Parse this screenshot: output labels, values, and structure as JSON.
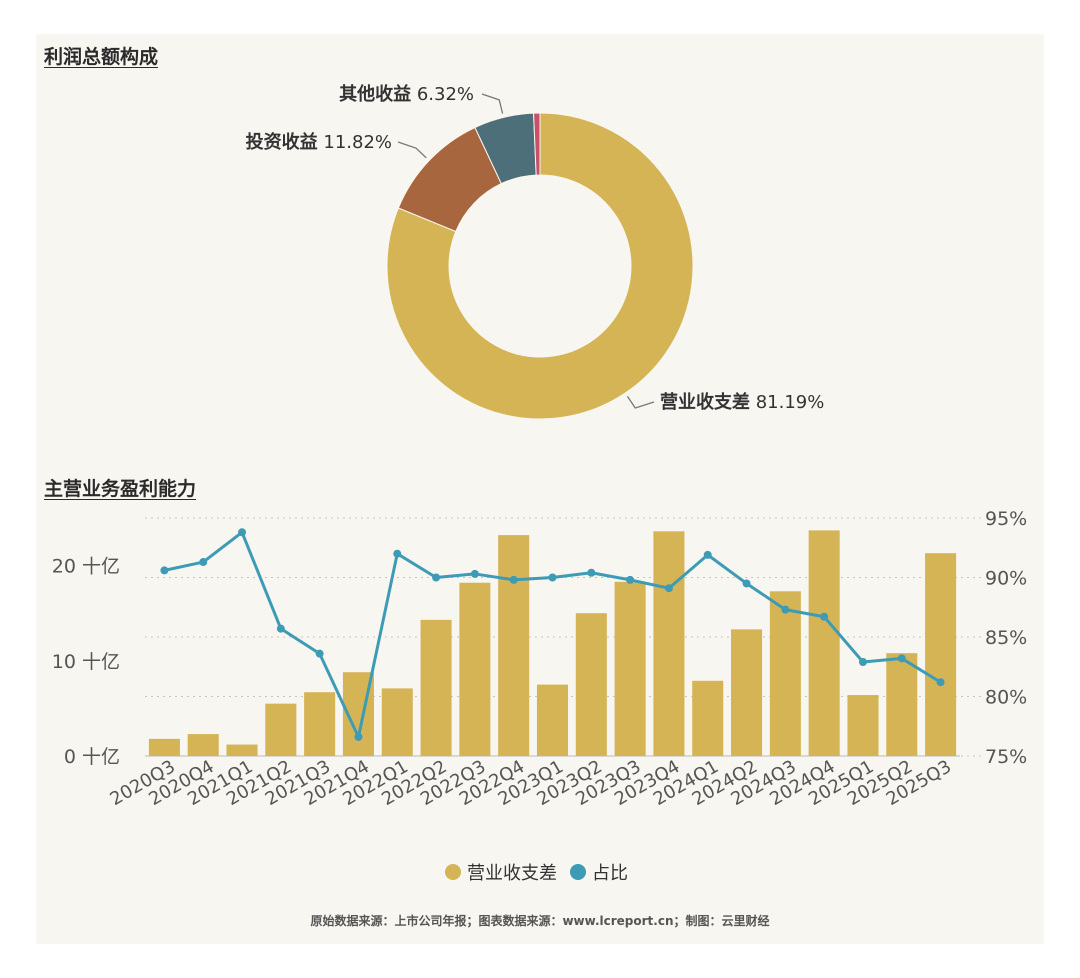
{
  "section1": {
    "title": "利润总额构成"
  },
  "section2": {
    "title": "主营业务盈利能力"
  },
  "footer": "原始数据来源：上市公司年报；图表数据来源：www.lcreport.cn；制图：云里财经",
  "colors": {
    "panel_bg": "#f8f6f1",
    "gold": "#d4b455",
    "teal_line": "#3d9bb5",
    "investment": "#a8663f",
    "other": "#4d6f7a",
    "small_slice": "#c8506a"
  },
  "chart_data": [
    {
      "type": "pie",
      "title": "利润总额构成",
      "donut": true,
      "slices": [
        {
          "label": "营业收支差",
          "value": 81.19,
          "value_label": "81.19%",
          "color": "#d4b455"
        },
        {
          "label": "投资收益",
          "value": 11.82,
          "value_label": "11.82%",
          "color": "#a8663f"
        },
        {
          "label": "其他收益",
          "value": 6.32,
          "value_label": "6.32%",
          "color": "#4d6f7a"
        },
        {
          "label": "",
          "value": 0.67,
          "value_label": "",
          "color": "#c8506a"
        }
      ]
    },
    {
      "type": "bar",
      "title": "主营业务盈利能力",
      "categories": [
        "2020Q3",
        "2020Q4",
        "2021Q1",
        "2021Q2",
        "2021Q3",
        "2021Q4",
        "2022Q1",
        "2022Q2",
        "2022Q3",
        "2022Q4",
        "2023Q1",
        "2023Q2",
        "2023Q3",
        "2023Q4",
        "2024Q1",
        "2024Q2",
        "2024Q3",
        "2024Q4",
        "2025Q1",
        "2025Q2",
        "2025Q3"
      ],
      "series": [
        {
          "name": "营业收支差",
          "type": "bar",
          "axis": "left",
          "color": "#d4b455",
          "values": [
            1.8,
            2.3,
            1.2,
            5.5,
            6.7,
            8.8,
            7.1,
            14.3,
            18.2,
            23.2,
            7.5,
            15.0,
            18.3,
            23.6,
            7.9,
            13.3,
            17.3,
            23.7,
            6.4,
            10.8,
            21.3
          ]
        },
        {
          "name": "占比",
          "type": "line",
          "axis": "right",
          "color": "#3d9bb5",
          "values": [
            90.6,
            91.3,
            93.8,
            85.7,
            83.6,
            76.6,
            92.0,
            90.0,
            90.3,
            89.8,
            90.0,
            90.4,
            89.8,
            89.1,
            91.9,
            89.5,
            87.3,
            86.7,
            82.9,
            83.2,
            81.2
          ]
        }
      ],
      "y_left": {
        "ticks": [
          0,
          10,
          20
        ],
        "tick_labels": [
          "0 十亿",
          "10 十亿",
          "20 十亿"
        ],
        "range": [
          0,
          25
        ]
      },
      "y_right": {
        "ticks": [
          75,
          80,
          85,
          90,
          95
        ],
        "tick_labels": [
          "75%",
          "80%",
          "85%",
          "90%",
          "95%"
        ],
        "range": [
          75,
          95
        ]
      },
      "grid": "dotted",
      "legend": {
        "position": "bottom",
        "items": [
          "营业收支差",
          "占比"
        ]
      }
    }
  ]
}
